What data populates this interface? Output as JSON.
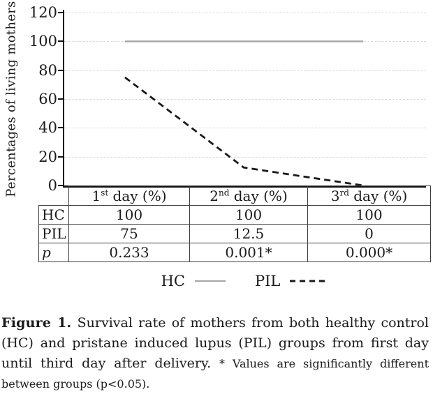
{
  "figure": {
    "background": "#ffffff",
    "text_color": "#1a1a1a",
    "axis_color": "#111111",
    "grid_color": "#d2d2d2",
    "table_border_color": "#3c3c3c"
  },
  "chart_data": {
    "type": "line",
    "title": "",
    "xlabel": "",
    "ylabel": "Percentages of living mothers",
    "categories": [
      "1st day (%)",
      "2nd day (%)",
      "3rd day (%)"
    ],
    "series": [
      {
        "name": "HC",
        "values": [
          100,
          100,
          100
        ],
        "style": "solid",
        "color": "#a6a6a6"
      },
      {
        "name": "PIL",
        "values": [
          75,
          12.5,
          0
        ],
        "style": "dashed",
        "color": "#1a1a1a"
      }
    ],
    "ylim": [
      0,
      120
    ],
    "yticks": [
      0,
      20,
      40,
      60,
      80,
      100,
      120
    ],
    "grid": "horizontal dotted gridlines at each y tick",
    "legend_position": "bottom center, below table"
  },
  "table": {
    "columns": [
      {
        "num": "1",
        "sup": "st",
        "rest": " day (%)"
      },
      {
        "num": "2",
        "sup": "nd",
        "rest": " day (%)"
      },
      {
        "num": "3",
        "sup": "rd",
        "rest": " day (%)"
      }
    ],
    "rows": [
      {
        "label": "HC",
        "values": [
          "100",
          "100",
          "100"
        ]
      },
      {
        "label": "PIL",
        "values": [
          "75",
          "12.5",
          "0"
        ]
      },
      {
        "label": "p",
        "values": [
          "0.233",
          "0.001*",
          "0.000*"
        ]
      }
    ]
  },
  "legend": {
    "items": [
      {
        "label": "HC",
        "line": "solid",
        "color": "#a6a6a6"
      },
      {
        "label": "PIL",
        "line": "dashed",
        "color": "#1a1a1a"
      }
    ]
  },
  "caption": {
    "label": "Figure 1.",
    "body": "Survival rate of mothers from both healthy control (HC) and pristane induced lupus (PIL) groups from first day until third day after delivery.",
    "note": "* Values are significantly different between groups (p<0.05)."
  }
}
